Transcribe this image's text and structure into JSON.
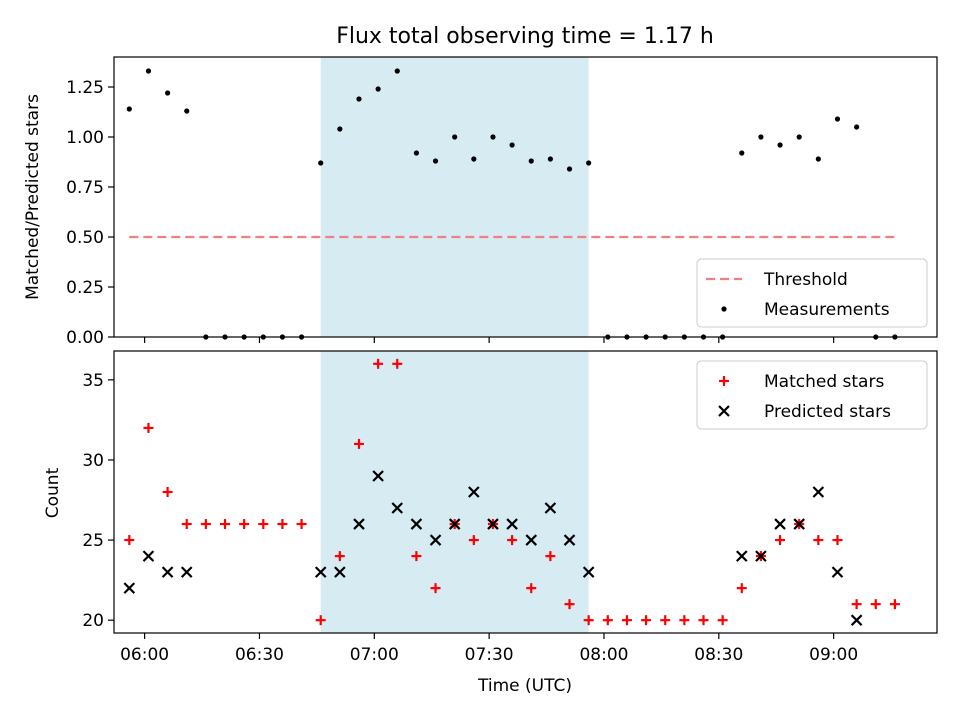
{
  "title": "Flux total observing time = 1.17 h",
  "chart_data": [
    {
      "type": "scatter",
      "ylabel": "Matched/Predicted stars",
      "ylim": [
        0,
        1.4
      ],
      "xlim": [
        "05:52",
        "09:27"
      ],
      "yticks": [
        0.0,
        0.25,
        0.5,
        0.75,
        1.0,
        1.25
      ],
      "ytick_labels": [
        "0.00",
        "0.25",
        "0.50",
        "0.75",
        "1.00",
        "1.25"
      ],
      "shaded_interval": [
        "06:46",
        "07:56"
      ],
      "threshold": {
        "name": "Threshold",
        "value": 0.5,
        "x_range": [
          "05:56",
          "09:16"
        ],
        "color": "#f08080"
      },
      "legend": [
        "Threshold",
        "Measurements"
      ],
      "legend_position": "lower right",
      "series": [
        {
          "name": "Measurements",
          "color": "#000000",
          "points": [
            [
              "05:56",
              1.14
            ],
            [
              "06:01",
              1.33
            ],
            [
              "06:06",
              1.22
            ],
            [
              "06:11",
              1.13
            ],
            [
              "06:16",
              0.0
            ],
            [
              "06:21",
              0.0
            ],
            [
              "06:26",
              0.0
            ],
            [
              "06:31",
              0.0
            ],
            [
              "06:36",
              0.0
            ],
            [
              "06:41",
              0.0
            ],
            [
              "06:46",
              0.87
            ],
            [
              "06:51",
              1.04
            ],
            [
              "06:56",
              1.19
            ],
            [
              "07:01",
              1.24
            ],
            [
              "07:06",
              1.33
            ],
            [
              "07:11",
              0.92
            ],
            [
              "07:16",
              0.88
            ],
            [
              "07:21",
              1.0
            ],
            [
              "07:26",
              0.89
            ],
            [
              "07:31",
              1.0
            ],
            [
              "07:36",
              0.96
            ],
            [
              "07:41",
              0.88
            ],
            [
              "07:46",
              0.89
            ],
            [
              "07:51",
              0.84
            ],
            [
              "07:56",
              0.87
            ],
            [
              "08:01",
              0.0
            ],
            [
              "08:06",
              0.0
            ],
            [
              "08:11",
              0.0
            ],
            [
              "08:16",
              0.0
            ],
            [
              "08:21",
              0.0
            ],
            [
              "08:26",
              0.0
            ],
            [
              "08:31",
              0.0
            ],
            [
              "08:36",
              0.92
            ],
            [
              "08:41",
              1.0
            ],
            [
              "08:46",
              0.96
            ],
            [
              "08:51",
              1.0
            ],
            [
              "08:56",
              0.89
            ],
            [
              "09:01",
              1.09
            ],
            [
              "09:06",
              1.05
            ],
            [
              "09:11",
              0.0
            ],
            [
              "09:16",
              0.0
            ]
          ]
        }
      ]
    },
    {
      "type": "scatter",
      "xlabel": "Time (UTC)",
      "ylabel": "Count",
      "ylim": [
        19.2,
        36.8
      ],
      "xlim": [
        "05:52",
        "09:27"
      ],
      "yticks": [
        20,
        25,
        30,
        35
      ],
      "ytick_labels": [
        "20",
        "25",
        "30",
        "35"
      ],
      "xticks": [
        "06:00",
        "06:30",
        "07:00",
        "07:30",
        "08:00",
        "08:30",
        "09:00"
      ],
      "shaded_interval": [
        "06:46",
        "07:56"
      ],
      "legend": [
        "Matched stars",
        "Predicted stars"
      ],
      "legend_position": "upper right",
      "series": [
        {
          "name": "Matched stars",
          "marker": "plus",
          "color": "#ff0000",
          "points": [
            [
              "05:56",
              25
            ],
            [
              "06:01",
              32
            ],
            [
              "06:06",
              28
            ],
            [
              "06:11",
              26
            ],
            [
              "06:16",
              26
            ],
            [
              "06:21",
              26
            ],
            [
              "06:26",
              26
            ],
            [
              "06:31",
              26
            ],
            [
              "06:36",
              26
            ],
            [
              "06:41",
              26
            ],
            [
              "06:46",
              20
            ],
            [
              "06:51",
              24
            ],
            [
              "06:56",
              31
            ],
            [
              "07:01",
              36
            ],
            [
              "07:06",
              36
            ],
            [
              "07:11",
              24
            ],
            [
              "07:16",
              22
            ],
            [
              "07:21",
              26
            ],
            [
              "07:26",
              25
            ],
            [
              "07:31",
              26
            ],
            [
              "07:36",
              25
            ],
            [
              "07:41",
              22
            ],
            [
              "07:46",
              24
            ],
            [
              "07:51",
              21
            ],
            [
              "07:56",
              20
            ],
            [
              "08:01",
              20
            ],
            [
              "08:06",
              20
            ],
            [
              "08:11",
              20
            ],
            [
              "08:16",
              20
            ],
            [
              "08:21",
              20
            ],
            [
              "08:26",
              20
            ],
            [
              "08:31",
              20
            ],
            [
              "08:36",
              22
            ],
            [
              "08:41",
              24
            ],
            [
              "08:46",
              25
            ],
            [
              "08:51",
              26
            ],
            [
              "08:56",
              25
            ],
            [
              "09:01",
              25
            ],
            [
              "09:06",
              21
            ],
            [
              "09:11",
              21
            ],
            [
              "09:16",
              21
            ]
          ]
        },
        {
          "name": "Predicted stars",
          "marker": "x",
          "color": "#000000",
          "points": [
            [
              "05:56",
              22
            ],
            [
              "06:01",
              24
            ],
            [
              "06:06",
              23
            ],
            [
              "06:11",
              23
            ],
            [
              "06:46",
              23
            ],
            [
              "06:51",
              23
            ],
            [
              "06:56",
              26
            ],
            [
              "07:01",
              29
            ],
            [
              "07:06",
              27
            ],
            [
              "07:11",
              26
            ],
            [
              "07:16",
              25
            ],
            [
              "07:21",
              26
            ],
            [
              "07:26",
              28
            ],
            [
              "07:31",
              26
            ],
            [
              "07:36",
              26
            ],
            [
              "07:41",
              25
            ],
            [
              "07:46",
              27
            ],
            [
              "07:51",
              25
            ],
            [
              "07:56",
              23
            ],
            [
              "08:36",
              24
            ],
            [
              "08:41",
              24
            ],
            [
              "08:46",
              26
            ],
            [
              "08:51",
              26
            ],
            [
              "08:56",
              28
            ],
            [
              "09:01",
              23
            ],
            [
              "09:06",
              20
            ]
          ]
        }
      ]
    }
  ]
}
